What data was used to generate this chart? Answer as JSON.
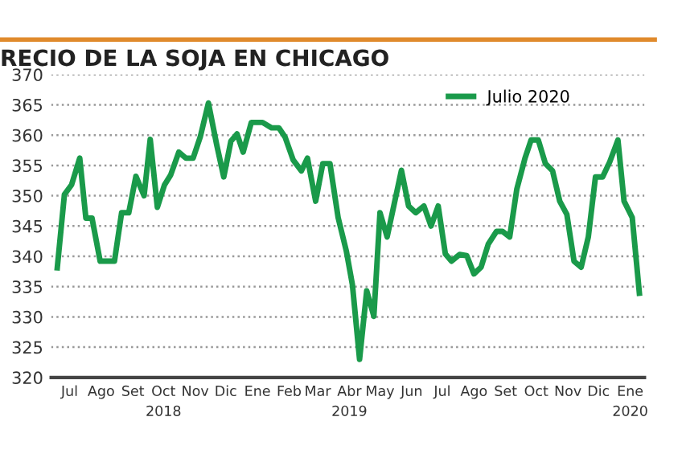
{
  "chart_data": {
    "type": "line",
    "title": "RECIO DE LA SOJA EN CHICAGO",
    "x": [
      "2018-06-19",
      "2018-06-26",
      "2018-07-03",
      "2018-07-11",
      "2018-07-17",
      "2018-07-23",
      "2018-07-31",
      "2018-08-14",
      "2018-08-21",
      "2018-08-28",
      "2018-09-04",
      "2018-09-12",
      "2018-09-18",
      "2018-09-25",
      "2018-10-02",
      "2018-10-08",
      "2018-10-16",
      "2018-10-23",
      "2018-10-30",
      "2018-11-06",
      "2018-11-14",
      "2018-11-22",
      "2018-11-29",
      "2018-12-06",
      "2018-12-12",
      "2018-12-18",
      "2018-12-26",
      "2019-01-06",
      "2019-01-15",
      "2019-01-22",
      "2019-01-28",
      "2019-02-05",
      "2019-02-13",
      "2019-02-19",
      "2019-02-27",
      "2019-03-06",
      "2019-03-13",
      "2019-03-21",
      "2019-03-29",
      "2019-04-04",
      "2019-04-11",
      "2019-04-18",
      "2019-04-25",
      "2019-05-01",
      "2019-05-08",
      "2019-05-22",
      "2019-05-29",
      "2019-06-05",
      "2019-06-13",
      "2019-06-20",
      "2019-06-27",
      "2019-07-04",
      "2019-07-10",
      "2019-07-18",
      "2019-07-25",
      "2019-08-01",
      "2019-08-08",
      "2019-08-15",
      "2019-08-23",
      "2019-08-29",
      "2019-09-05",
      "2019-09-12",
      "2019-09-20",
      "2019-09-26",
      "2019-10-03",
      "2019-10-10",
      "2019-10-17",
      "2019-10-24",
      "2019-10-31",
      "2019-11-07",
      "2019-11-14",
      "2019-11-21",
      "2019-11-28",
      "2019-12-05",
      "2019-12-12",
      "2019-12-20",
      "2019-12-26",
      "2020-01-03",
      "2020-01-10"
    ],
    "series": [
      {
        "name": "Julio 2020",
        "color": "#1a9a4a",
        "values": [
          338.1,
          350.2,
          351.8,
          356.2,
          346.3,
          346.3,
          339.2,
          339.2,
          347.2,
          347.2,
          353.2,
          350,
          359.3,
          348.1,
          351.8,
          353.4,
          357.2,
          356.2,
          356.2,
          359.7,
          365.3,
          358.5,
          353.1,
          359,
          360.2,
          357.2,
          362.1,
          362.1,
          361.2,
          361.2,
          359.7,
          355.9,
          354.1,
          356.2,
          349.1,
          355.3,
          355.3,
          346.4,
          340.9,
          335.3,
          323,
          334.3,
          330.1,
          347.2,
          343.2,
          354.2,
          348.3,
          347.2,
          348.3,
          345,
          348.3,
          340.4,
          339.2,
          340.3,
          340.1,
          337.1,
          338.2,
          342,
          344.1,
          344.1,
          343.2,
          351.1,
          356.2,
          359.2,
          359.2,
          355.3,
          354.1,
          349.1,
          346.9,
          339.2,
          338.2,
          343.2,
          353.1,
          353.1,
          355.6,
          359.2,
          349.1,
          346.4,
          333.9
        ]
      }
    ],
    "xlim": [
      "2018-06-13",
      "2020-01-15"
    ],
    "xticks": [
      {
        "value": "2018-07-01",
        "label": "Jul"
      },
      {
        "value": "2018-08-01",
        "label": "Ago"
      },
      {
        "value": "2018-09-01",
        "label": "Set"
      },
      {
        "value": "2018-10-01",
        "label": "Oct\n2018"
      },
      {
        "value": "2018-11-01",
        "label": "Nov"
      },
      {
        "value": "2018-12-01",
        "label": "Dic"
      },
      {
        "value": "2019-01-01",
        "label": "Ene"
      },
      {
        "value": "2019-02-01",
        "label": "Feb"
      },
      {
        "value": "2019-03-01",
        "label": "Mar"
      },
      {
        "value": "2019-04-01",
        "label": "Abr\n2019"
      },
      {
        "value": "2019-05-01",
        "label": "May"
      },
      {
        "value": "2019-06-01",
        "label": "Jun"
      },
      {
        "value": "2019-07-01",
        "label": "Jul"
      },
      {
        "value": "2019-08-01",
        "label": "Ago"
      },
      {
        "value": "2019-09-01",
        "label": "Set"
      },
      {
        "value": "2019-10-01",
        "label": "Oct"
      },
      {
        "value": "2019-11-01",
        "label": "Nov"
      },
      {
        "value": "2019-12-01",
        "label": "Dic"
      },
      {
        "value": "2020-01-01",
        "label": "Ene\n2020"
      }
    ],
    "ylim": [
      320,
      370
    ],
    "yticks": [
      320,
      325,
      330,
      335,
      340,
      345,
      350,
      355,
      360,
      365,
      370
    ],
    "grid": "y",
    "legend": "top right",
    "marker": "none",
    "line_style": "solid"
  }
}
